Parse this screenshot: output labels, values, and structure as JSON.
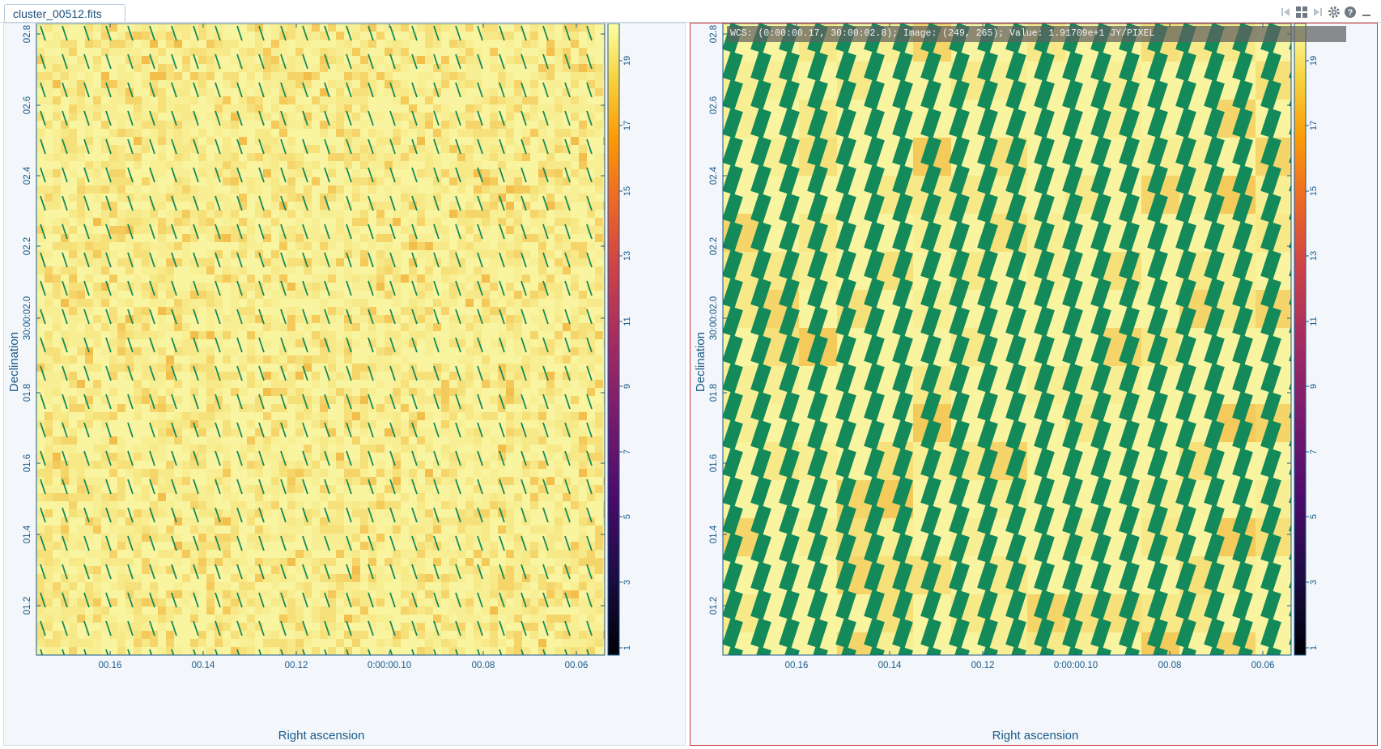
{
  "file_tab": {
    "label": "cluster_00512.fits"
  },
  "toolbar": {
    "icons": [
      "skip-first-icon",
      "grid-layout-icon",
      "skip-last-icon",
      "gear-icon",
      "help-icon",
      "minimize-icon"
    ]
  },
  "colors": {
    "vector_green": "#14895a",
    "axis_blue": "#1a5a8a",
    "active_border": "#d23a3a",
    "panel_bg": "#f3f7fb"
  },
  "panels": {
    "left": {
      "x_axis_label": "Right ascension",
      "y_axis_label": "Declination",
      "x_ticks": [
        "00.16",
        "00.14",
        "00.12",
        "0:00:00.10",
        "00.08",
        "00.06"
      ],
      "y_ticks": [
        "02.8",
        "02.6",
        "02.4",
        "02.2",
        "30:00:02.0",
        "01.8",
        "01.6",
        "01.4",
        "01.2"
      ],
      "colorbar_ticks": [
        "19",
        "17",
        "15",
        "13",
        "11",
        "9",
        "7",
        "5",
        "3",
        "1"
      ],
      "colormap": "inferno",
      "vector_style": "thin-lines"
    },
    "right": {
      "active": true,
      "cursor_info": "WCS: (0:00:00.17, 30:00:02.8); Image: (249, 265); Value:  1.91709e+1 JY/PIXEL",
      "x_axis_label": "Right ascension",
      "y_axis_label": "Declination",
      "x_ticks": [
        "00.16",
        "00.14",
        "00.12",
        "0:00:00.10",
        "00.08",
        "00.06"
      ],
      "y_ticks": [
        "02.8",
        "02.6",
        "02.4",
        "02.2",
        "30:00:02.0",
        "01.8",
        "01.6",
        "01.4",
        "01.2"
      ],
      "colorbar_ticks": [
        "19",
        "17",
        "15",
        "13",
        "11",
        "9",
        "7",
        "5",
        "3",
        "1"
      ],
      "colormap": "inferno",
      "vector_style": "thick-blocks"
    }
  }
}
